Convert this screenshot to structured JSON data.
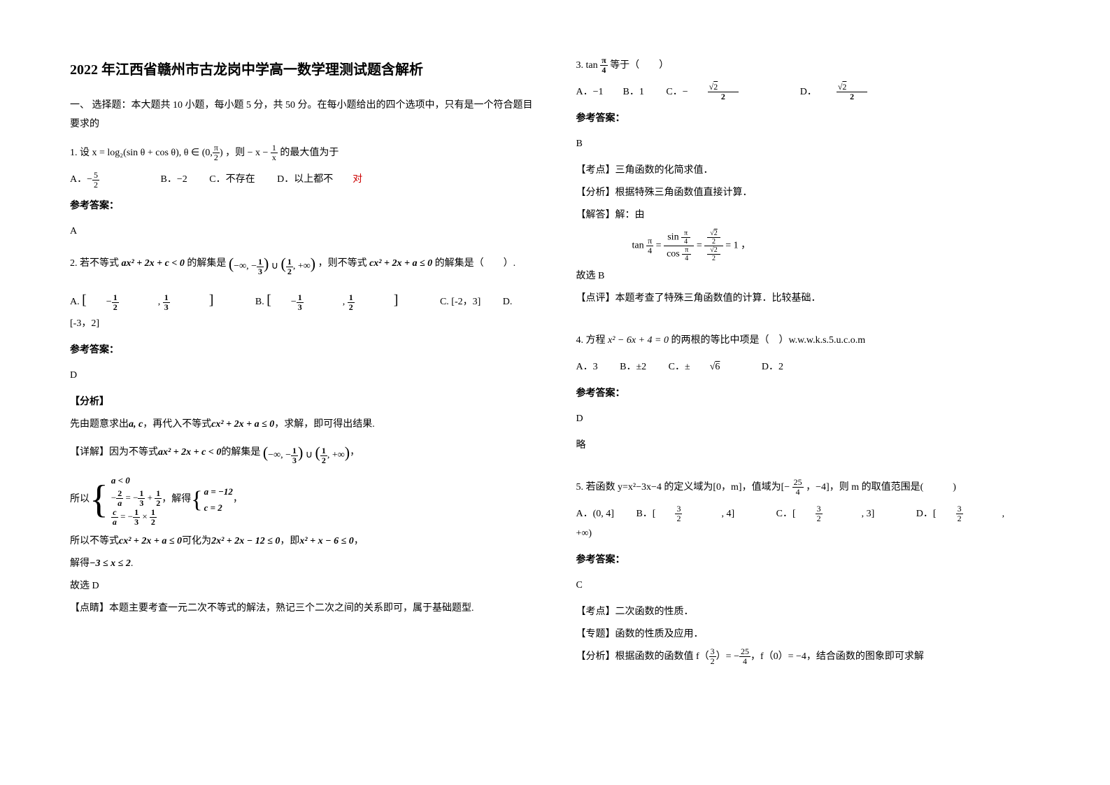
{
  "title": "2022 年江西省赣州市古龙岗中学高一数学理测试题含解析",
  "section_intro": "一、 选择题：本大题共 10 小题，每小题 5 分，共 50 分。在每小题给出的四个选项中，只有是一个符合题目要求的",
  "q1": {
    "stem_pre": "1. 设",
    "formula": "x = log₂(sin θ + cos θ), θ ∈ (0,",
    "stem_mid": "，则",
    "expr": "− x −",
    "stem_post": "的最大值为于",
    "optA_tail": "",
    "optB": "B．−2",
    "optC": "C．不存在",
    "optD": "D．以上都不",
    "optD_red": "对",
    "ref": "参考答案：",
    "ans": "A"
  },
  "q2": {
    "stem_pre": "2. 若不等式",
    "expr1": "ax² + 2x + c < 0",
    "stem_mid1": "的解集是",
    "set_text1": "(−∞, −",
    "set_text2": ") ∪ (",
    "set_text3": ", +∞)",
    "stem_mid2": "，则不等式",
    "expr2": "cx² + 2x + a ≤ 0",
    "stem_post": "的解集是（　　）.",
    "optA_l": "[−",
    "optA_r": "]",
    "optB_l": "[−",
    "optB_r": "]",
    "optC": "C. [-2，3]",
    "optD": "D. [-3，2]",
    "ref": "参考答案：",
    "ans": "D",
    "analysis_label": "【分析】",
    "analysis1_pre": "先由题意求出",
    "analysis1_vars": "a, c",
    "analysis1_mid": "，再代入不等式",
    "analysis1_expr": "cx² + 2x + a ≤ 0",
    "analysis1_post": "，求解，即可得出结果.",
    "detail_label": "【详解】因为不等式",
    "detail_expr": "ax² + 2x + c < 0",
    "detail_mid": "的解集是",
    "so_pre": "所以",
    "solve_mid": "，解得",
    "so2_pre": "所以不等式",
    "so2_expr1": "cx² + 2x + a ≤ 0",
    "so2_mid": "可化为",
    "so2_expr2": "2x² + 2x − 12 ≤ 0",
    "so2_mid2": "，即",
    "so2_expr3": "x² + x − 6 ≤ 0",
    "so2_post": "，",
    "solve2_pre": "解得",
    "solve2_expr": "−3 ≤ x ≤ 2",
    "solve2_post": ".",
    "therefore": "故选 D",
    "comment": "【点睛】本题主要考查一元二次不等式的解法，熟记三个二次之间的关系即可，属于基础题型."
  },
  "q3": {
    "stem_pre": "3. tan",
    "stem_post": "等于（　　）",
    "optA": "A．−1",
    "optB": "B．1",
    "optC_pre": "C．−",
    "optD_pre": "D．",
    "ref": "参考答案：",
    "ans": "B",
    "point": "【考点】三角函数的化简求值．",
    "analysis": "【分析】根据特殊三角函数值直接计算．",
    "solve_pre": "【解答】解：由",
    "solve_expr_pre": "tan",
    "solve_eq": "= 1",
    "solve_post": "，",
    "therefore": "故选 B",
    "comment": "【点评】本题考查了特殊三角函数值的计算．比较基础．"
  },
  "q4": {
    "stem_pre": "4. 方程",
    "expr": "x² − 6x + 4 = 0",
    "stem_post": "的两根的等比中项是（　）w.w.w.k.s.5.u.c.o.m",
    "optA": "A．3",
    "optB": "B．±2",
    "optC_pre": "C．±",
    "optC_sqrt": "6",
    "optD": "D．2",
    "ref": "参考答案：",
    "ans": "D",
    "brief": "略"
  },
  "q5": {
    "stem_pre": "5. 若函数 y=x²−3x−4 的定义域为[0，m]，值域为[−",
    "stem_mid": "，−4]，则 m 的取值范围是(　　　)",
    "optA": "A．(0, 4]",
    "optB_pre": "B．[",
    "optB_post": ", 4]",
    "optC_pre": "C．[",
    "optC_post": ", 3]",
    "optD_pre": "D．[",
    "optD_post": ", +∞)",
    "ref": "参考答案：",
    "ans": "C",
    "point": "【考点】二次函数的性质．",
    "topic": "【专题】函数的性质及应用．",
    "analysis_pre": "【分析】根据函数的函数值 f（",
    "analysis_mid1": "）= −",
    "analysis_mid2": "，f（0）= −4，结合函数的图象即可求解"
  },
  "colors": {
    "text": "#000000",
    "bg": "#ffffff",
    "accent": "#cc0000"
  }
}
